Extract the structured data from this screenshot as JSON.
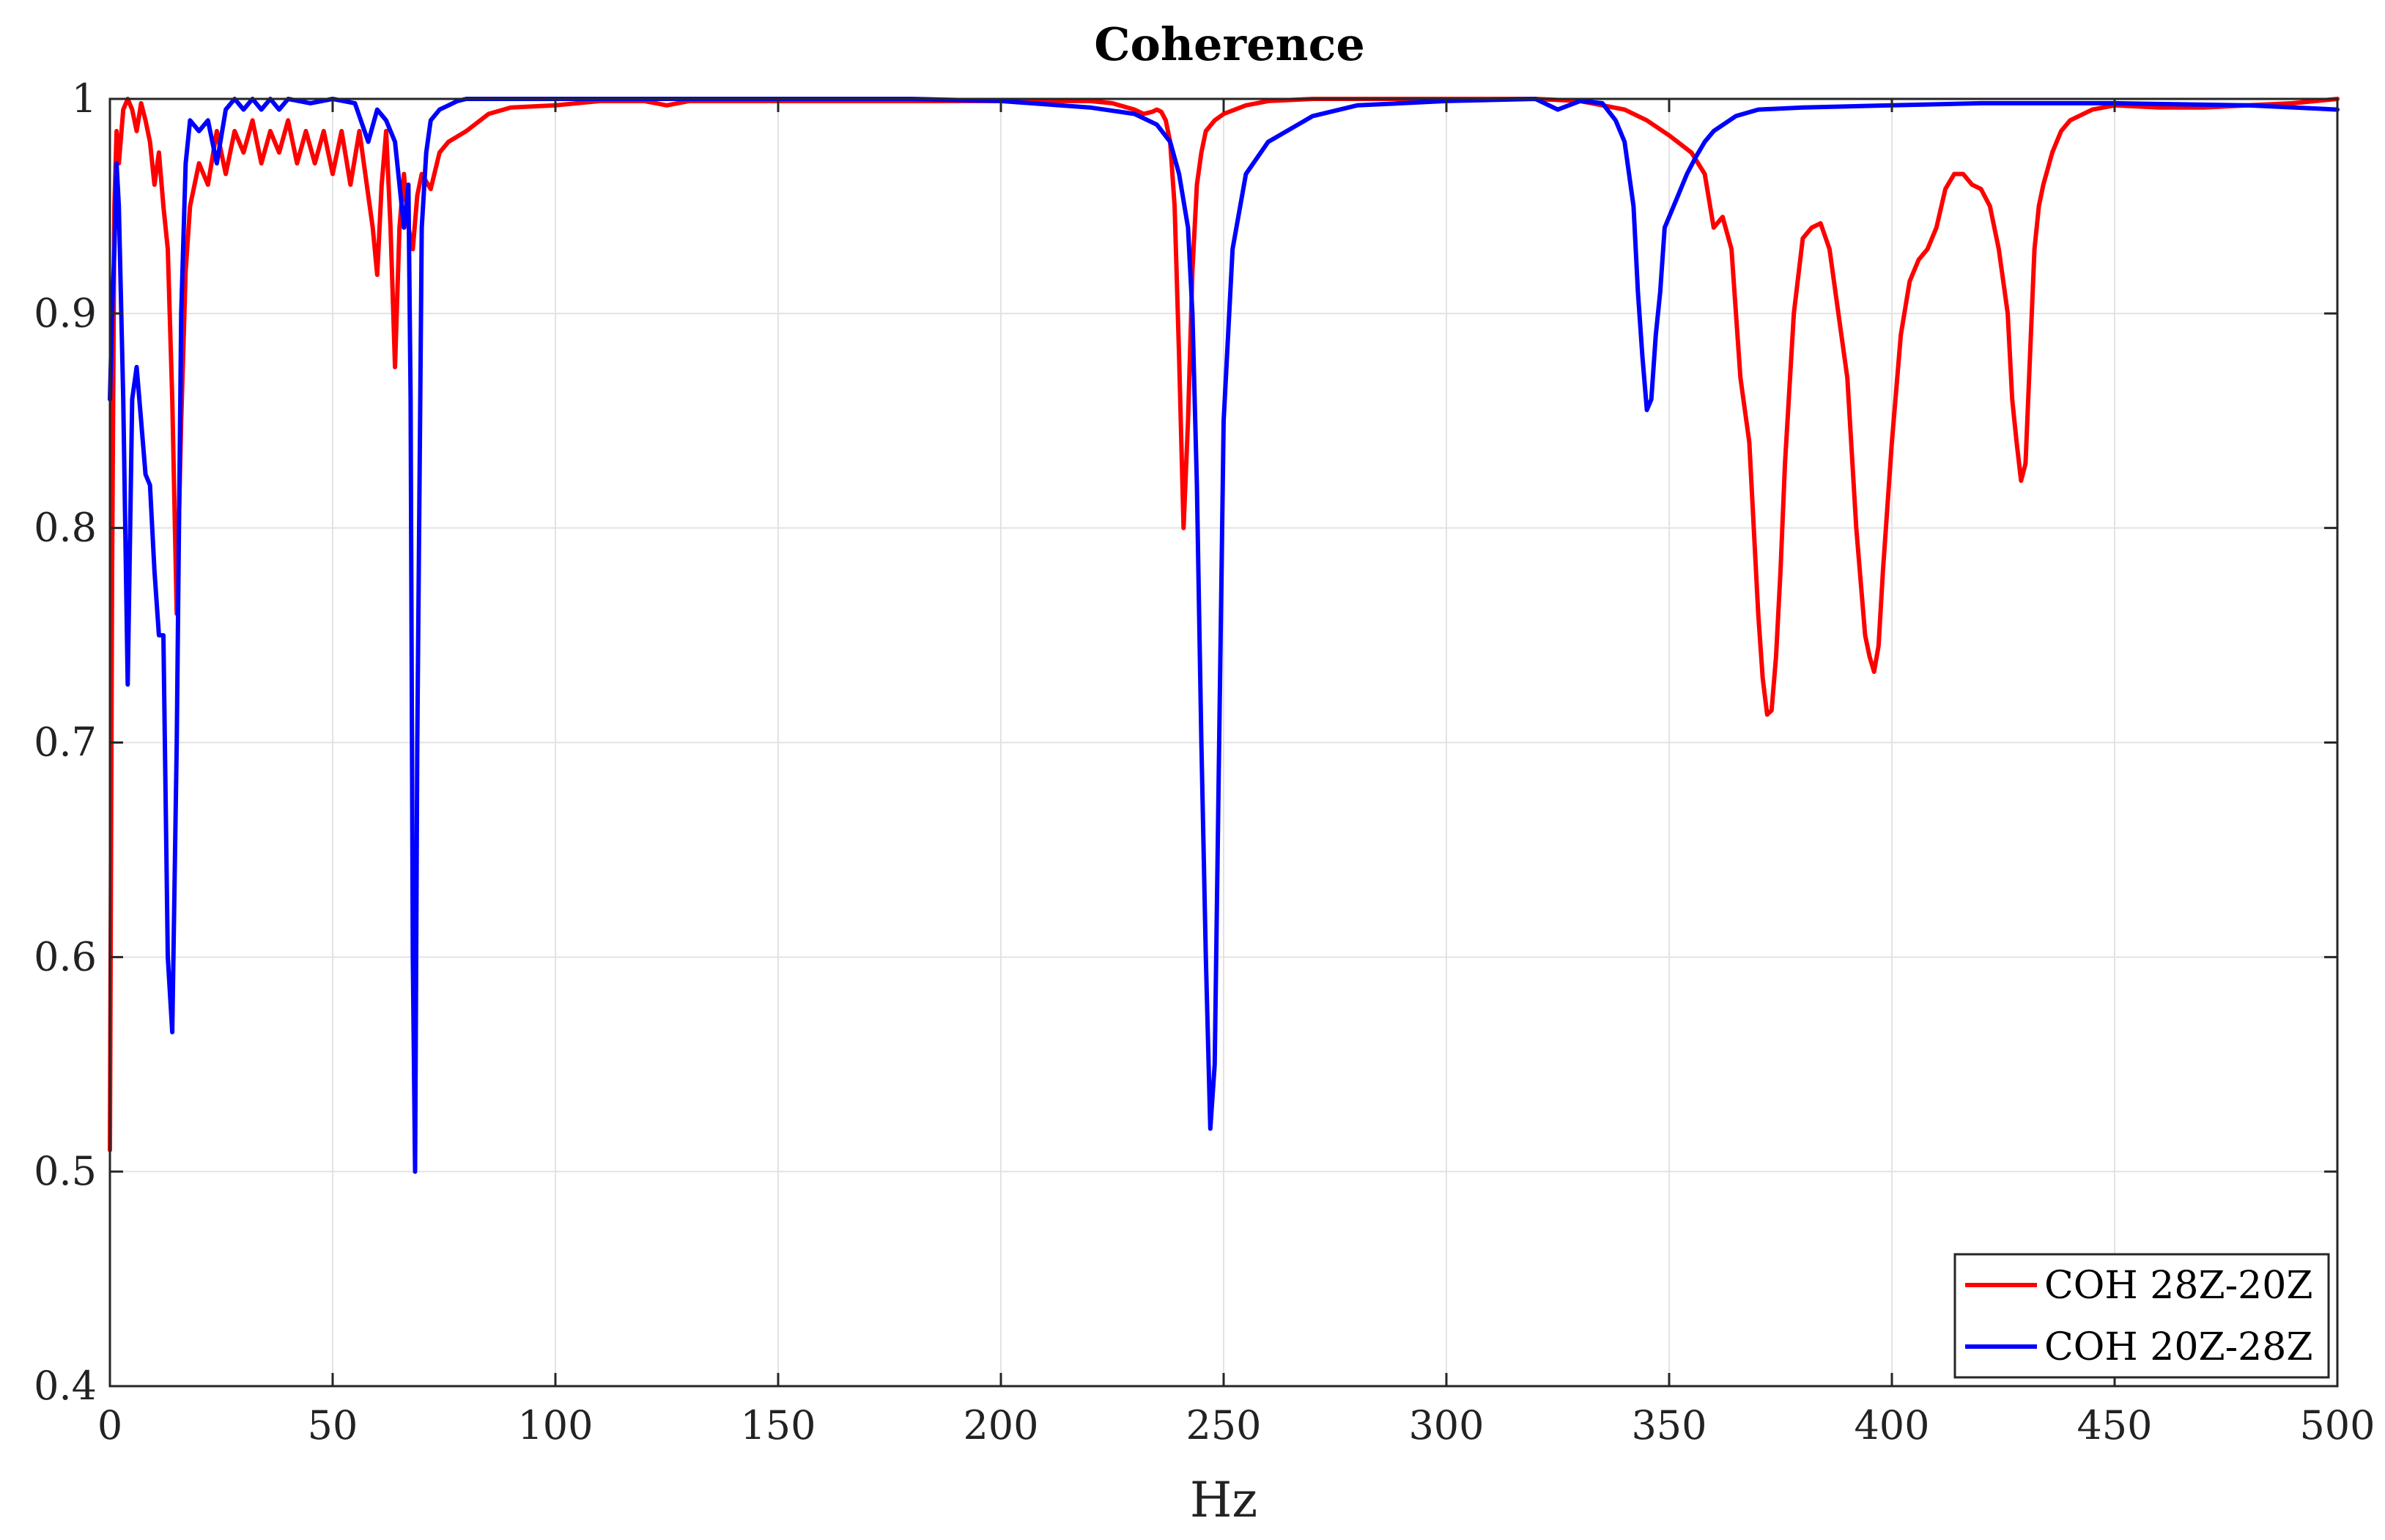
{
  "chart_data": {
    "type": "line",
    "title": "Coherence",
    "xlabel": "Hz",
    "ylabel": "",
    "xlim": [
      0,
      500
    ],
    "ylim": [
      0.4,
      1.0
    ],
    "xticks": [
      "0",
      "50",
      "100",
      "150",
      "200",
      "250",
      "300",
      "350",
      "400",
      "450",
      "500"
    ],
    "yticks": [
      "0.4",
      "0.5",
      "0.6",
      "0.7",
      "0.8",
      "0.9",
      "1"
    ],
    "grid": true,
    "legend_position": "bottom-right",
    "series": [
      {
        "name": "COH 28Z-20Z",
        "color": "#ff0000",
        "x": [
          0,
          0.5,
          1,
          1.5,
          2,
          3,
          4,
          5,
          6,
          7,
          8,
          9,
          10,
          11,
          12,
          13,
          14,
          15,
          16,
          17,
          18,
          20,
          22,
          24,
          26,
          28,
          30,
          32,
          34,
          36,
          38,
          40,
          42,
          44,
          46,
          48,
          50,
          52,
          54,
          56,
          58,
          59,
          60,
          61,
          62,
          63,
          64,
          65,
          66,
          67,
          68,
          69,
          70,
          72,
          74,
          76,
          80,
          85,
          90,
          100,
          110,
          120,
          125,
          130,
          140,
          150,
          160,
          170,
          180,
          190,
          200,
          210,
          220,
          225,
          230,
          232,
          234,
          235,
          236,
          237,
          238,
          239,
          240,
          241,
          242,
          243,
          244,
          245,
          246,
          248,
          250,
          255,
          260,
          270,
          280,
          300,
          320,
          330,
          340,
          345,
          350,
          355,
          358,
          360,
          362,
          364,
          366,
          368,
          370,
          371,
          372,
          373,
          374,
          375,
          376,
          378,
          380,
          382,
          384,
          386,
          388,
          390,
          392,
          394,
          395,
          396,
          397,
          398,
          400,
          402,
          404,
          406,
          408,
          410,
          412,
          414,
          416,
          418,
          420,
          422,
          424,
          426,
          427,
          428,
          429,
          430,
          431,
          432,
          433,
          434,
          436,
          438,
          440,
          445,
          450,
          460,
          470,
          480,
          490,
          500
        ],
        "values": [
          0.51,
          0.78,
          0.95,
          0.985,
          0.97,
          0.995,
          1.0,
          0.995,
          0.985,
          0.998,
          0.99,
          0.98,
          0.96,
          0.975,
          0.95,
          0.93,
          0.86,
          0.76,
          0.85,
          0.92,
          0.95,
          0.97,
          0.96,
          0.985,
          0.965,
          0.985,
          0.975,
          0.99,
          0.97,
          0.985,
          0.975,
          0.99,
          0.97,
          0.985,
          0.97,
          0.985,
          0.965,
          0.985,
          0.96,
          0.985,
          0.955,
          0.94,
          0.918,
          0.96,
          0.985,
          0.94,
          0.875,
          0.94,
          0.965,
          0.94,
          0.93,
          0.955,
          0.965,
          0.958,
          0.975,
          0.98,
          0.985,
          0.993,
          0.996,
          0.997,
          0.999,
          0.999,
          0.997,
          0.999,
          0.999,
          0.999,
          0.999,
          0.999,
          0.999,
          0.999,
          0.999,
          0.999,
          0.999,
          0.998,
          0.995,
          0.993,
          0.994,
          0.995,
          0.994,
          0.99,
          0.98,
          0.95,
          0.88,
          0.8,
          0.85,
          0.92,
          0.96,
          0.975,
          0.985,
          0.99,
          0.993,
          0.997,
          0.999,
          1.0,
          1.0,
          1.0,
          1.0,
          0.999,
          0.995,
          0.99,
          0.983,
          0.975,
          0.965,
          0.94,
          0.945,
          0.93,
          0.87,
          0.84,
          0.76,
          0.73,
          0.713,
          0.715,
          0.74,
          0.78,
          0.83,
          0.9,
          0.935,
          0.94,
          0.942,
          0.93,
          0.9,
          0.87,
          0.8,
          0.75,
          0.74,
          0.733,
          0.745,
          0.78,
          0.84,
          0.89,
          0.915,
          0.925,
          0.93,
          0.94,
          0.958,
          0.965,
          0.965,
          0.96,
          0.958,
          0.95,
          0.93,
          0.9,
          0.86,
          0.84,
          0.822,
          0.83,
          0.88,
          0.93,
          0.95,
          0.96,
          0.975,
          0.985,
          0.99,
          0.995,
          0.997,
          0.996,
          0.996,
          0.997,
          0.998,
          1.0
        ]
      },
      {
        "name": "COH 20Z-28Z",
        "color": "#0000ff",
        "x": [
          0,
          0.5,
          1,
          1.5,
          2,
          3,
          4,
          5,
          6,
          7,
          8,
          9,
          10,
          11,
          12,
          13,
          14,
          15,
          16,
          17,
          18,
          20,
          22,
          24,
          26,
          28,
          30,
          32,
          34,
          36,
          38,
          40,
          45,
          50,
          55,
          58,
          60,
          62,
          64,
          66,
          67,
          67.5,
          68,
          68.5,
          69,
          70,
          71,
          72,
          74,
          76,
          78,
          80,
          90,
          100,
          120,
          150,
          180,
          200,
          220,
          230,
          235,
          238,
          240,
          242,
          243,
          244,
          245,
          246,
          247,
          248,
          249,
          250,
          252,
          255,
          260,
          270,
          280,
          300,
          320,
          325,
          330,
          335,
          338,
          340,
          342,
          343,
          344,
          345,
          346,
          347,
          348,
          349,
          350,
          352,
          354,
          356,
          358,
          360,
          365,
          370,
          380,
          400,
          420,
          450,
          480,
          500
        ],
        "values": [
          0.86,
          0.9,
          0.93,
          0.97,
          0.95,
          0.86,
          0.727,
          0.86,
          0.875,
          0.85,
          0.825,
          0.82,
          0.78,
          0.75,
          0.75,
          0.6,
          0.565,
          0.7,
          0.9,
          0.97,
          0.99,
          0.985,
          0.99,
          0.97,
          0.995,
          1.0,
          0.995,
          1.0,
          0.995,
          1.0,
          0.995,
          1.0,
          0.998,
          1.0,
          0.998,
          0.98,
          0.995,
          0.99,
          0.98,
          0.94,
          0.96,
          0.86,
          0.6,
          0.5,
          0.7,
          0.94,
          0.975,
          0.99,
          0.995,
          0.997,
          0.999,
          1.0,
          1.0,
          1.0,
          1.0,
          1.0,
          1.0,
          0.999,
          0.996,
          0.993,
          0.988,
          0.98,
          0.965,
          0.94,
          0.9,
          0.82,
          0.7,
          0.6,
          0.52,
          0.55,
          0.7,
          0.85,
          0.93,
          0.965,
          0.98,
          0.992,
          0.997,
          0.999,
          1.0,
          0.995,
          0.999,
          0.998,
          0.99,
          0.98,
          0.95,
          0.91,
          0.88,
          0.855,
          0.86,
          0.89,
          0.91,
          0.94,
          0.945,
          0.955,
          0.965,
          0.973,
          0.98,
          0.985,
          0.992,
          0.995,
          0.996,
          0.997,
          0.998,
          0.998,
          0.997,
          0.995
        ]
      }
    ]
  }
}
